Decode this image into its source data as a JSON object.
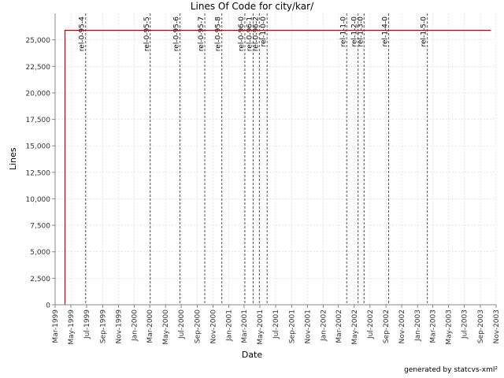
{
  "page": {
    "footer": "generated by statcvs-xml²"
  },
  "chart_data": {
    "type": "line",
    "title": "Lines Of Code for city/kar/",
    "xlabel": "Date",
    "ylabel": "Lines",
    "ylim": [
      0,
      27500
    ],
    "xlim": [
      "1999-03-01",
      "2003-11-01"
    ],
    "y_ticks": [
      0,
      2500,
      5000,
      7500,
      10000,
      12500,
      15000,
      17500,
      20000,
      22500,
      25000
    ],
    "y_tick_labels": [
      "0",
      "2,500",
      "5,000",
      "7,500",
      "10,000",
      "12,500",
      "15,000",
      "17,500",
      "20,000",
      "22,500",
      "25,000"
    ],
    "x_ticks": [
      "1999-03-01",
      "1999-05-01",
      "1999-07-01",
      "1999-09-01",
      "1999-11-01",
      "2000-01-01",
      "2000-03-01",
      "2000-05-01",
      "2000-07-01",
      "2000-09-01",
      "2000-11-01",
      "2001-01-01",
      "2001-03-01",
      "2001-05-01",
      "2001-07-01",
      "2001-09-01",
      "2001-11-01",
      "2002-01-01",
      "2002-03-01",
      "2002-05-01",
      "2002-07-01",
      "2002-09-01",
      "2002-11-01",
      "2003-01-01",
      "2003-03-01",
      "2003-05-01",
      "2003-07-01",
      "2003-09-01",
      "2003-11-01"
    ],
    "x_tick_labels": [
      "Mar-1999",
      "May-1999",
      "Jul-1999",
      "Sep-1999",
      "Nov-1999",
      "Jan-2000",
      "Mar-2000",
      "May-2000",
      "Jul-2000",
      "Sep-2000",
      "Nov-2000",
      "Jan-2001",
      "Mar-2001",
      "May-2001",
      "Jul-2001",
      "Sep-2001",
      "Nov-2001",
      "Jan-2002",
      "Mar-2002",
      "May-2002",
      "Jul-2002",
      "Sep-2002",
      "Nov-2002",
      "Jan-2003",
      "Mar-2003",
      "May-2003",
      "Jul-2003",
      "Sep-2003",
      "Nov-2003"
    ],
    "grid": true,
    "series": [
      {
        "color": "#cc0000",
        "points": [
          {
            "x": "1999-04-08",
            "y": 0
          },
          {
            "x": "1999-04-08",
            "y": 25900
          },
          {
            "x": "2003-10-12",
            "y": 25900
          }
        ]
      }
    ],
    "markers": [
      {
        "label": "rel-0-95-4",
        "x": "1999-06-27"
      },
      {
        "label": "rel-0-95-5",
        "x": "2000-03-03"
      },
      {
        "label": "rel-0-95-6",
        "x": "2000-06-26"
      },
      {
        "label": "rel-0-95-7",
        "x": "2000-09-30"
      },
      {
        "label": "rel-0-95-8",
        "x": "2000-12-05"
      },
      {
        "label": "rel-0-96-0",
        "x": "2001-03-04"
      },
      {
        "label": "rel-0-96-1",
        "x": "2001-04-05"
      },
      {
        "label": "rel-0-96-2",
        "x": "2001-04-29"
      },
      {
        "label": "rel-1-0-0",
        "x": "2001-05-29"
      },
      {
        "label": "rel-1-1-0",
        "x": "2002-04-02"
      },
      {
        "label": "rel-1-2-0",
        "x": "2002-05-16"
      },
      {
        "label": "rel-1-3-0",
        "x": "2002-06-08"
      },
      {
        "label": "rel-1-4-0",
        "x": "2002-09-11"
      },
      {
        "label": "rel-1-5-0",
        "x": "2003-02-08"
      }
    ]
  }
}
